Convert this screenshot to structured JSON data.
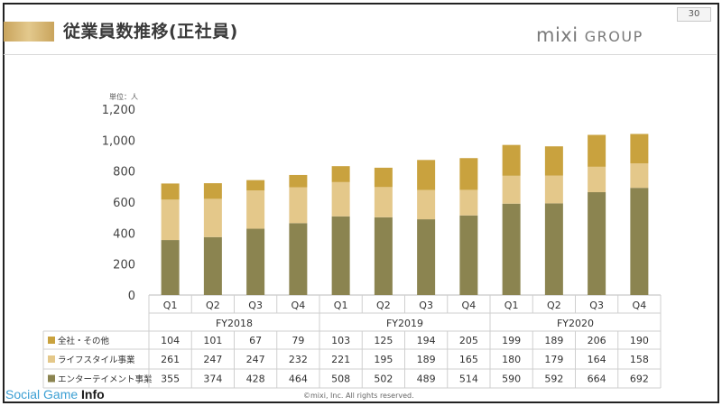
{
  "header": {
    "title": "従業員数推移(正社員)",
    "page_number": "30",
    "logo_main": "mixi",
    "logo_sub": "GROUP"
  },
  "footer": {
    "brand_light": "Social Game ",
    "brand_bold": "Info",
    "copyright": "©mixi, Inc. All rights reserved."
  },
  "chart_data": {
    "type": "bar",
    "stacked": true,
    "unit_label": "単位：人",
    "ylim": [
      0,
      1200
    ],
    "yticks": [
      "0",
      "200",
      "400",
      "600",
      "800",
      "1,000",
      "1,200"
    ],
    "categories": [
      "Q1",
      "Q2",
      "Q3",
      "Q4",
      "Q1",
      "Q2",
      "Q3",
      "Q4",
      "Q1",
      "Q2",
      "Q3",
      "Q4"
    ],
    "groups": [
      {
        "label": "FY2018",
        "count": 4
      },
      {
        "label": "FY2019",
        "count": 4
      },
      {
        "label": "FY2020",
        "count": 4
      }
    ],
    "series": [
      {
        "name": "エンターテイメント事業",
        "color": "#8b8450",
        "values": [
          355,
          374,
          428,
          464,
          508,
          502,
          489,
          514,
          590,
          592,
          664,
          692
        ]
      },
      {
        "name": "ライフスタイル事業",
        "color": "#e4c88a",
        "values": [
          261,
          247,
          247,
          232,
          221,
          195,
          189,
          165,
          180,
          179,
          164,
          158
        ]
      },
      {
        "name": "全社・その他",
        "color": "#c9a23e",
        "values": [
          104,
          101,
          67,
          79,
          103,
          125,
          194,
          205,
          199,
          189,
          206,
          190
        ]
      }
    ],
    "table_row_order": [
      2,
      1,
      0
    ],
    "grid": false,
    "legend": "table-left"
  }
}
